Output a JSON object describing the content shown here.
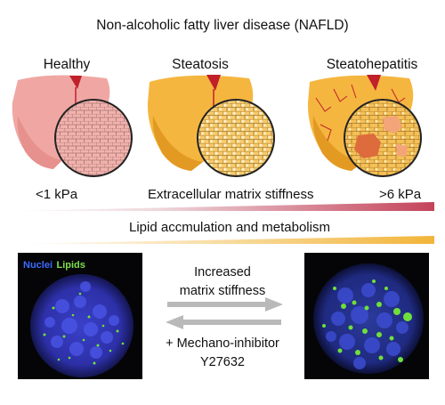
{
  "title": "Non-alcoholic fatty liver disease (NAFLD)",
  "stages": [
    "Healthy",
    "Steatosis",
    "Steatohepatitis"
  ],
  "stiffness": {
    "low": "<1 kPa",
    "label": "Extracellular matrix stiffness",
    "high": ">6 kPa"
  },
  "lipid_bar": {
    "label": "Lipid accmulation and metabolism"
  },
  "micro": {
    "nuclei": "Nuclei",
    "lipids": "Lipids"
  },
  "arrows": {
    "forward_line1": "Increased",
    "forward_line2": "matrix stiffness",
    "reverse_line1": "+ Mechano-inhibitor",
    "reverse_line2": "Y27632"
  },
  "colors": {
    "healthy_liver": "#f0a7a3",
    "steatosis_liver": "#f5b640",
    "vessel": "#c0202a",
    "stiffness_bar_high": "#c4435a",
    "lipid_bar_high": "#f2b53a",
    "arrow": "#b9b9b9"
  }
}
